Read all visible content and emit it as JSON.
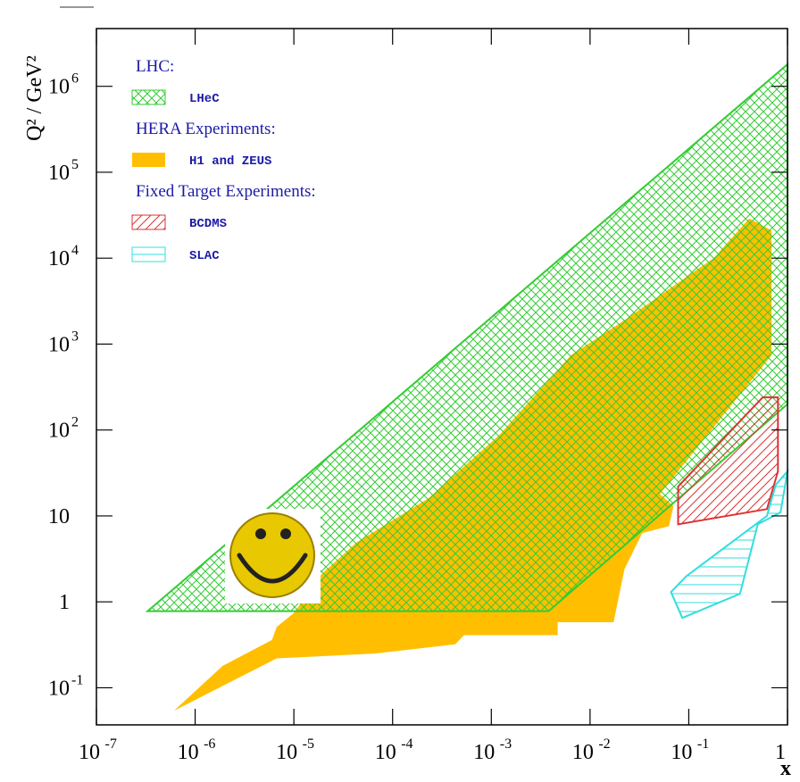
{
  "chart_data": {
    "type": "region",
    "x_label": "x",
    "y_label": "Q² / GeV²",
    "xscale": "log",
    "yscale": "log",
    "xlim": [
      1e-07,
      1
    ],
    "ylim": [
      0.037,
      4700000
    ],
    "xticks": [
      {
        "value": 1e-07,
        "label": "10",
        "exponent": "-7"
      },
      {
        "value": 1e-06,
        "label": "10",
        "exponent": "-6"
      },
      {
        "value": 1e-05,
        "label": "10",
        "exponent": "-5"
      },
      {
        "value": 0.0001,
        "label": "10",
        "exponent": "-4"
      },
      {
        "value": 0.001,
        "label": "10",
        "exponent": "-3"
      },
      {
        "value": 0.01,
        "label": "10",
        "exponent": "-2"
      },
      {
        "value": 0.1,
        "label": "10",
        "exponent": "-1"
      },
      1
    ],
    "yticks": [
      {
        "value": 0.1,
        "label": "10",
        "exponent": "-1"
      },
      1,
      10,
      {
        "value": 100,
        "label": "10",
        "exponent": "2"
      },
      {
        "value": 1000,
        "label": "10",
        "exponent": "3"
      },
      {
        "value": 10000,
        "label": "10",
        "exponent": "4"
      },
      {
        "value": 100000,
        "label": "10",
        "exponent": "5"
      },
      {
        "value": 1000000,
        "label": "10",
        "exponent": "6"
      }
    ],
    "legend": "upper left",
    "groups": [
      {
        "title": "LHC:",
        "series": [
          {
            "name": "LHeC",
            "color": "#33cc33",
            "fill": "cross",
            "x": [
              3.3e-07,
              1,
              1,
              0.0038
            ],
            "y": [
              0.78,
              1800000,
              200,
              0.78
            ]
          }
        ]
      },
      {
        "title": "HERA Experiments:",
        "series": [
          {
            "name": "H1 and ZEUS",
            "color": "#ffbf00",
            "fill": "solid",
            "x": [
              6.1e-07,
              1.9e-06,
              6e-06,
              6.7e-06,
              1e-05,
              1.9e-05,
              4.3e-05,
              0.00023,
              0.0012,
              0.0064,
              0.0223,
              0.178,
              0.41,
              0.69,
              0.69,
              0.078,
              0.051,
              0.07,
              0.063,
              0.0337,
              0.0223,
              0.0173,
              0.0047,
              0.0047,
              0.00053,
              0.00043,
              6.6e-05,
              6.7e-06
            ],
            "y": [
              0.054,
              0.18,
              0.36,
              0.51,
              0.74,
              2.1,
              4.9,
              16,
              87,
              740,
              1900,
              10000,
              29000,
              21000,
              740,
              33,
              18,
              13,
              7.6,
              6.3,
              2.4,
              0.58,
              0.58,
              0.41,
              0.41,
              0.32,
              0.25,
              0.22
            ]
          }
        ]
      },
      {
        "title": "Fixed Target Experiments:",
        "series": [
          {
            "name": "BCDMS",
            "color": "#dd3333",
            "fill": "diagonal",
            "x": [
              0.078,
              0.078,
              0.62,
              0.8,
              0.8,
              0.56
            ],
            "y": [
              22,
              8.0,
              12,
              33,
              240,
              240
            ]
          },
          {
            "name": "SLAC",
            "color": "#33dddd",
            "fill": "horizontal",
            "x": [
              0.066,
              0.086,
              0.33,
              0.5,
              0.85,
              1.0,
              0.76,
              0.62,
              0.095
            ],
            "y": [
              1.3,
              0.65,
              1.24,
              8.0,
              11,
              33,
              23,
              10,
              2.0
            ]
          }
        ]
      }
    ]
  }
}
